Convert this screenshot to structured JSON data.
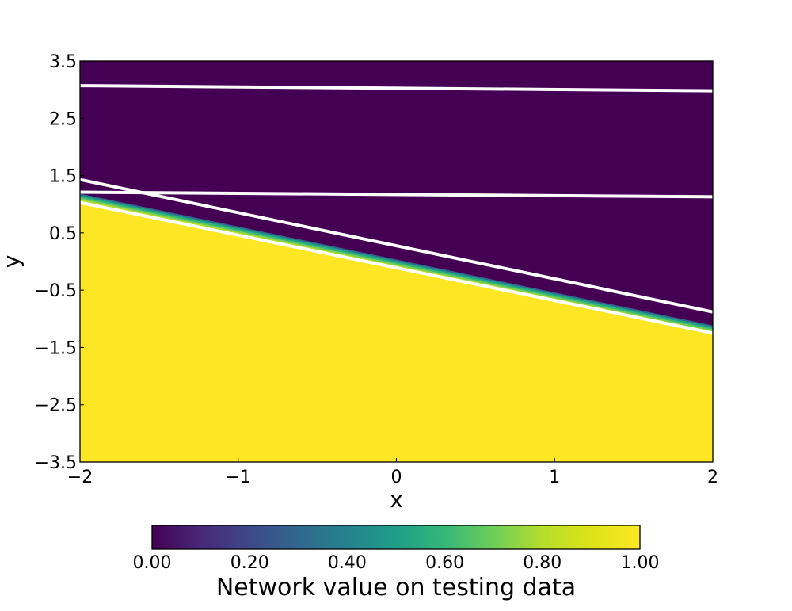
{
  "chart_data": {
    "type": "heatmap",
    "title": "",
    "xlabel": "x",
    "ylabel": "y",
    "xlim": [
      -2,
      2
    ],
    "ylim": [
      -3.5,
      3.5
    ],
    "x_ticks": [
      "−2",
      "−1",
      "0",
      "1",
      "2"
    ],
    "x_tick_values": [
      -2,
      -1,
      0,
      1,
      2
    ],
    "y_ticks": [
      "3.5",
      "2.5",
      "1.5",
      "0.5",
      "−0.5",
      "−1.5",
      "−2.5",
      "−3.5"
    ],
    "y_tick_values": [
      3.5,
      2.5,
      1.5,
      0.5,
      -0.5,
      -1.5,
      -2.5,
      -3.5
    ],
    "colormap": "viridis",
    "colors": {
      "low": "#440154",
      "high": "#fde725",
      "lines": "#ffffff"
    },
    "region_boundary": {
      "x": [
        -2,
        2
      ],
      "y": [
        1.15,
        -1.15
      ],
      "above_value": 0.0,
      "below_value": 1.0
    },
    "lines": [
      {
        "x": [
          -2,
          2
        ],
        "y": [
          3.07,
          2.98
        ]
      },
      {
        "x": [
          -2,
          2
        ],
        "y": [
          1.43,
          -0.88
        ]
      },
      {
        "x": [
          -2,
          2
        ],
        "y": [
          1.21,
          1.13
        ]
      },
      {
        "x": [
          -2,
          2
        ],
        "y": [
          1.03,
          -1.25
        ]
      }
    ],
    "colorbar": {
      "label": "Network value on testing data",
      "range": [
        0,
        1
      ],
      "ticks": [
        "0.00",
        "0.20",
        "0.40",
        "0.60",
        "0.80",
        "1.00"
      ],
      "tick_values": [
        0,
        0.2,
        0.4,
        0.6,
        0.8,
        1.0
      ],
      "orientation": "horizontal",
      "placement": "bottom"
    },
    "grid": false,
    "legend": "none"
  }
}
